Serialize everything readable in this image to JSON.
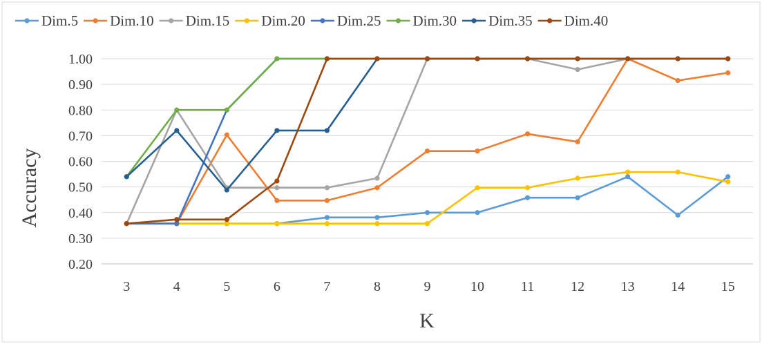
{
  "chart_data": {
    "type": "line",
    "title": "",
    "xlabel": "K",
    "ylabel": "Accuracy",
    "x": [
      3,
      4,
      5,
      6,
      7,
      8,
      9,
      10,
      11,
      12,
      13,
      14,
      15
    ],
    "y_ticks": [
      "0.20",
      "0.30",
      "0.40",
      "0.50",
      "0.60",
      "0.70",
      "0.80",
      "0.90",
      "1.00"
    ],
    "ylim": [
      0.2,
      1.0
    ],
    "grid": "horizontal",
    "legend_position": "top",
    "series": [
      {
        "name": "Dim.5",
        "color": "#5B9BD5",
        "values": [
          0.357,
          0.357,
          0.357,
          0.357,
          0.381,
          0.381,
          0.4,
          0.4,
          0.458,
          0.458,
          0.54,
          0.39,
          0.54
        ]
      },
      {
        "name": "Dim.10",
        "color": "#ED7D31",
        "values": [
          0.357,
          0.357,
          0.703,
          0.447,
          0.447,
          0.497,
          0.64,
          0.64,
          0.707,
          0.676,
          1.0,
          0.915,
          0.945
        ]
      },
      {
        "name": "Dim.15",
        "color": "#A5A5A5",
        "values": [
          0.357,
          0.8,
          0.497,
          0.497,
          0.497,
          0.534,
          1.0,
          1.0,
          1.0,
          0.958,
          1.0,
          1.0,
          1.0
        ]
      },
      {
        "name": "Dim.20",
        "color": "#FFC000",
        "values": [
          0.357,
          0.357,
          0.357,
          0.357,
          0.357,
          0.357,
          0.357,
          0.497,
          0.497,
          0.534,
          0.558,
          0.558,
          0.52
        ]
      },
      {
        "name": "Dim.25",
        "color": "#4472C4",
        "values": [
          0.357,
          0.357,
          0.8,
          1.0,
          1.0,
          1.0,
          1.0,
          1.0,
          1.0,
          1.0,
          1.0,
          1.0,
          1.0
        ]
      },
      {
        "name": "Dim.30",
        "color": "#70AD47",
        "values": [
          0.54,
          0.8,
          0.8,
          1.0,
          1.0,
          1.0,
          1.0,
          1.0,
          1.0,
          1.0,
          1.0,
          1.0,
          1.0
        ]
      },
      {
        "name": "Dim.35",
        "color": "#255E91",
        "values": [
          0.54,
          0.72,
          0.488,
          0.72,
          0.72,
          1.0,
          1.0,
          1.0,
          1.0,
          1.0,
          1.0,
          1.0,
          1.0
        ]
      },
      {
        "name": "Dim.40",
        "color": "#9E480E",
        "values": [
          0.357,
          0.373,
          0.373,
          0.523,
          1.0,
          1.0,
          1.0,
          1.0,
          1.0,
          1.0,
          1.0,
          1.0,
          1.0
        ]
      }
    ]
  }
}
